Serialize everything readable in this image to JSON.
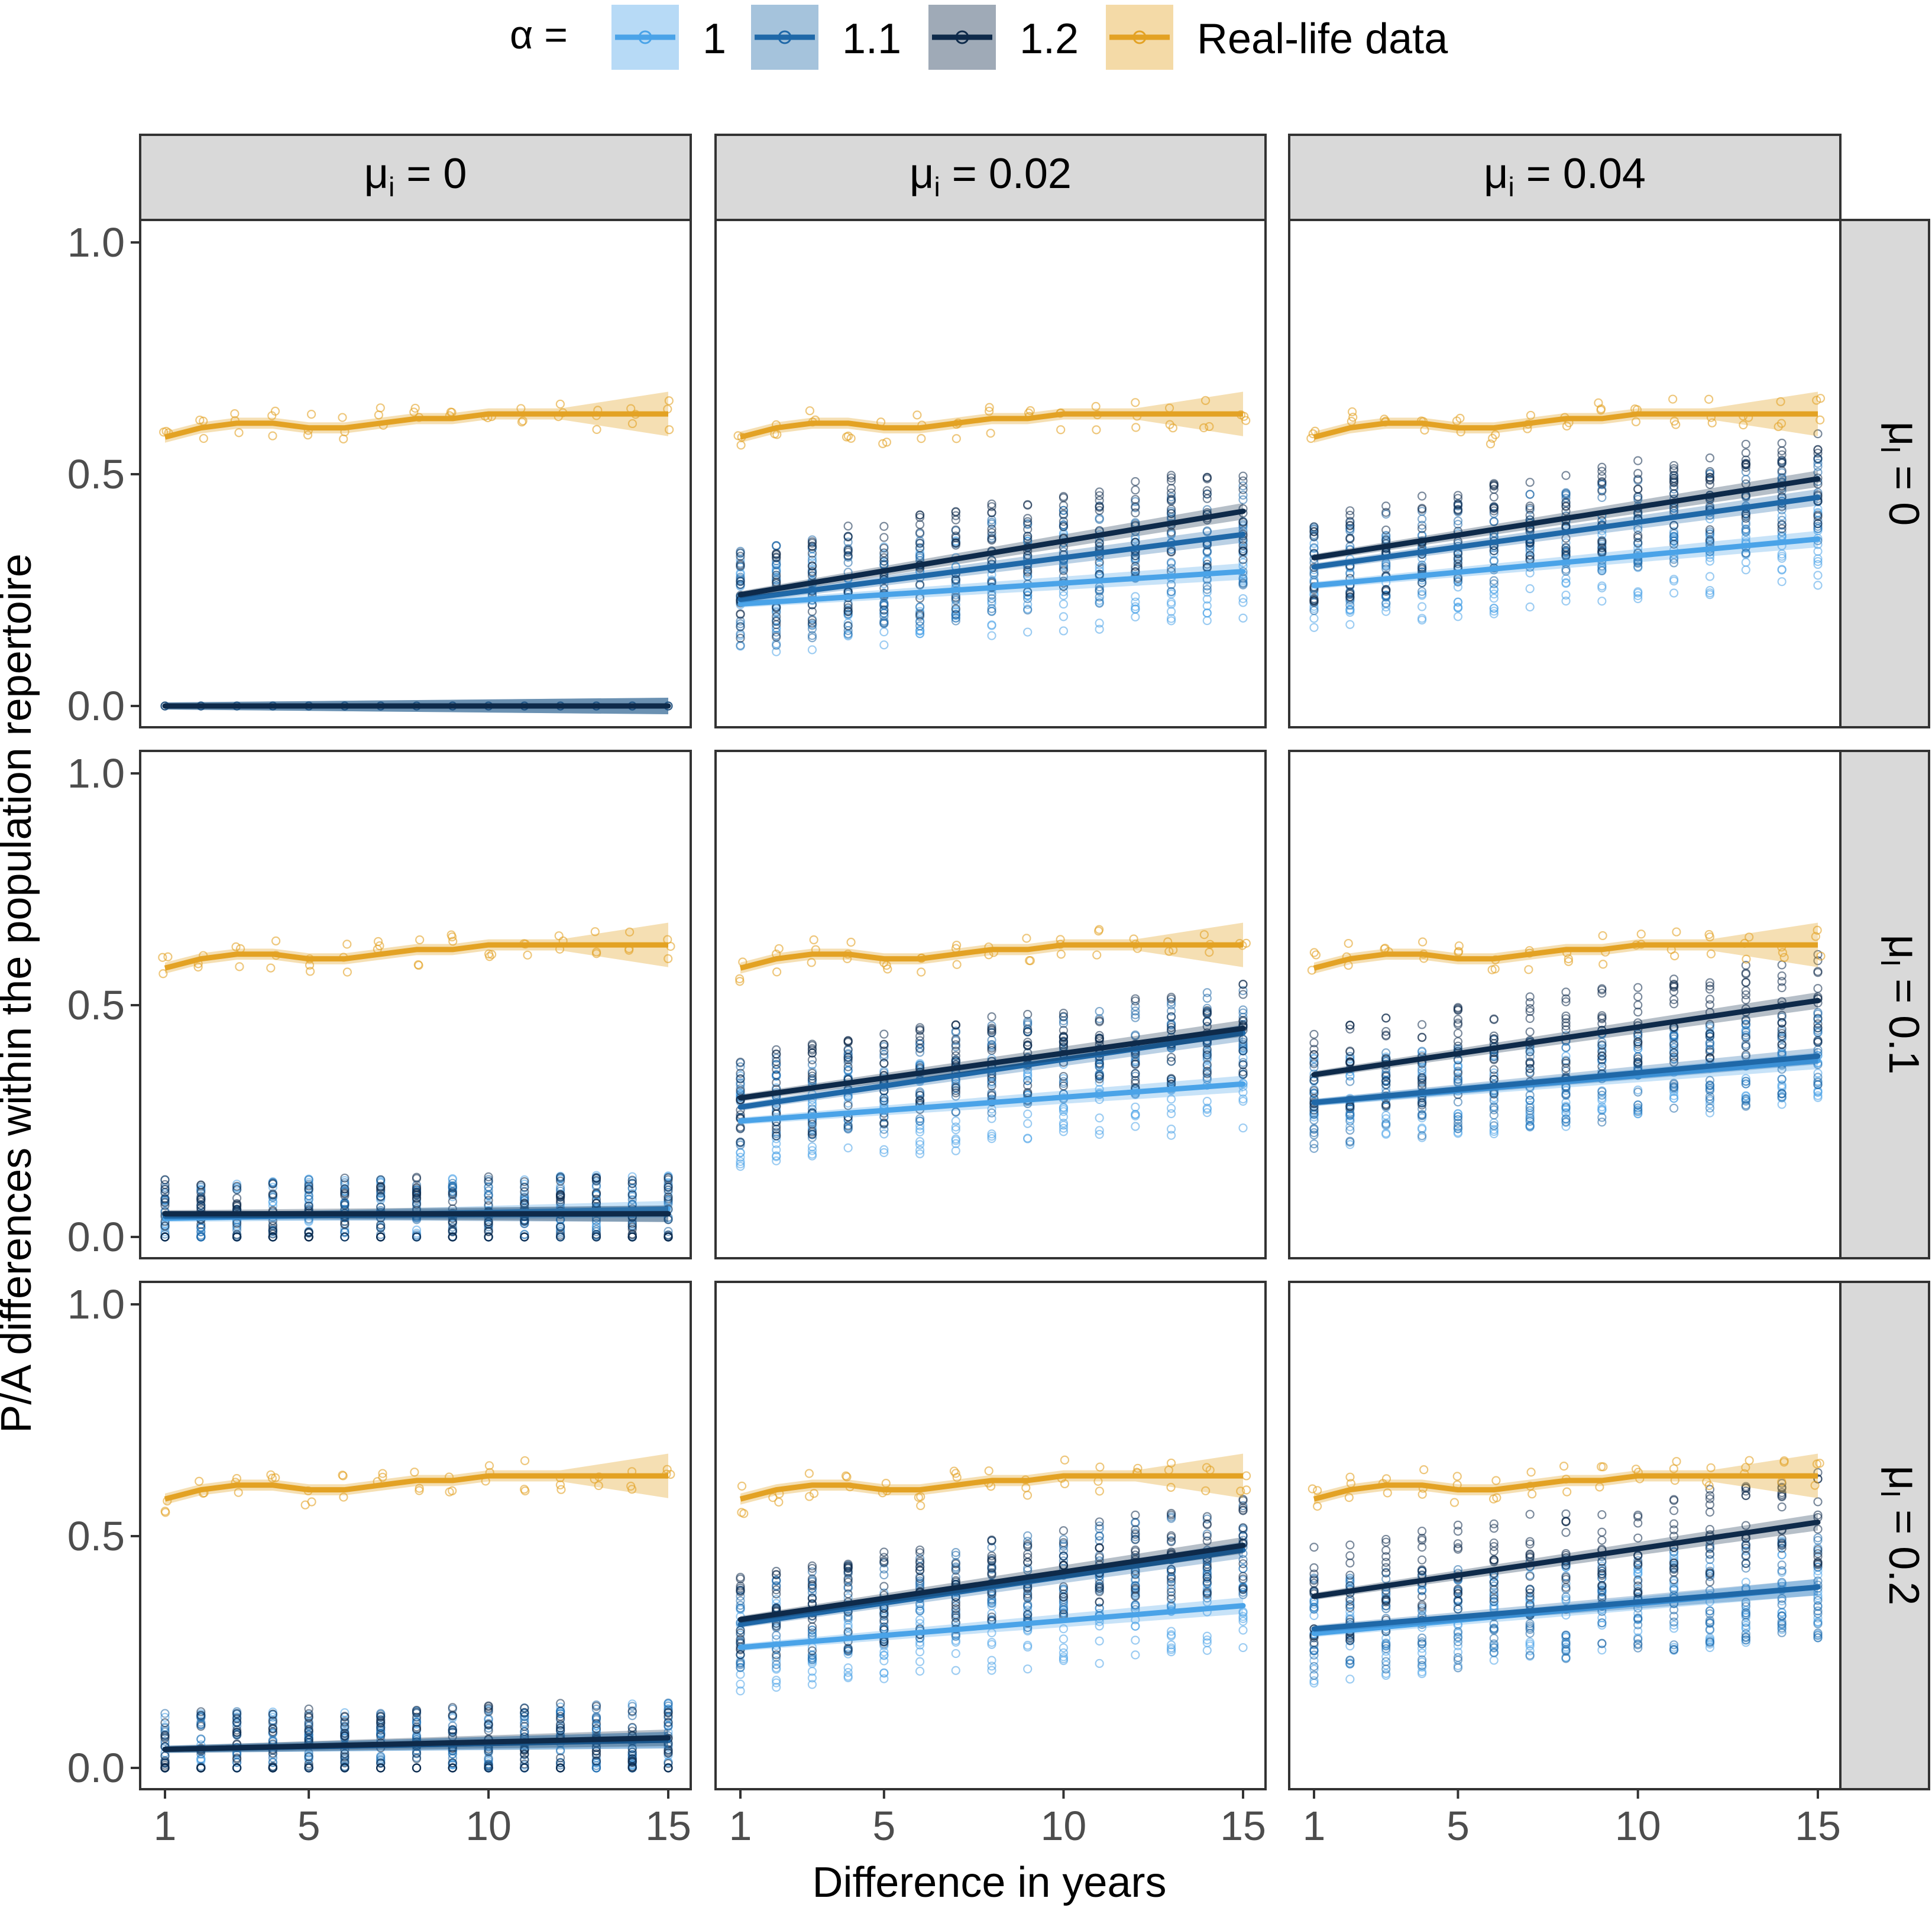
{
  "chart_data": {
    "type": "scatter",
    "xlabel": "Difference in years",
    "ylabel": "P/A differences within the population repertoire",
    "xlim": [
      1,
      15
    ],
    "ylim": [
      0,
      1
    ],
    "x_ticks": [
      1,
      5,
      10,
      15
    ],
    "y_ticks": [
      0.0,
      0.5,
      1.0
    ],
    "y_tick_labels": [
      "0.0",
      "0.5",
      "1.0"
    ],
    "legend": {
      "position": "top",
      "title": "α =",
      "entries": [
        {
          "label": "1",
          "color": "#4aa3e8"
        },
        {
          "label": "1.1",
          "color": "#1f68a8"
        },
        {
          "label": "1.2",
          "color": "#0e2a4a"
        },
        {
          "label": "Real-life data",
          "color": "#e3a224"
        }
      ]
    },
    "column_facets": [
      {
        "prefix": "μ",
        "sub": "i",
        "value": " = 0"
      },
      {
        "prefix": "μ",
        "sub": "i",
        "value": " = 0.02"
      },
      {
        "prefix": "μ",
        "sub": "i",
        "value": " = 0.04"
      }
    ],
    "row_facets": [
      {
        "prefix": "μ",
        "sub": "I",
        "value": " = 0"
      },
      {
        "prefix": "μ",
        "sub": "I",
        "value": " = 0.1"
      },
      {
        "prefix": "μ",
        "sub": "I",
        "value": " = 0.2"
      }
    ],
    "real_life_data": {
      "name": "Real-life data",
      "x": [
        1,
        2,
        3,
        4,
        5,
        6,
        7,
        8,
        9,
        10,
        11,
        12,
        13,
        14,
        15
      ],
      "y": [
        0.58,
        0.6,
        0.61,
        0.61,
        0.6,
        0.6,
        0.61,
        0.62,
        0.62,
        0.63,
        0.63,
        0.63,
        0.63,
        0.63,
        0.63
      ]
    },
    "simulation_trends": [
      [
        {
          "alpha": "1",
          "start": 0.0,
          "end": 0.0
        },
        {
          "alpha": "1.1",
          "start": 0.0,
          "end": 0.0
        },
        {
          "alpha": "1.2",
          "start": 0.0,
          "end": 0.0
        }
      ],
      [
        {
          "alpha": "1",
          "start": 0.22,
          "end": 0.29
        },
        {
          "alpha": "1.1",
          "start": 0.23,
          "end": 0.37
        },
        {
          "alpha": "1.2",
          "start": 0.24,
          "end": 0.42
        }
      ],
      [
        {
          "alpha": "1",
          "start": 0.26,
          "end": 0.36
        },
        {
          "alpha": "1.1",
          "start": 0.3,
          "end": 0.45
        },
        {
          "alpha": "1.2",
          "start": 0.32,
          "end": 0.49
        }
      ],
      [
        {
          "alpha": "1",
          "start": 0.04,
          "end": 0.06
        },
        {
          "alpha": "1.1",
          "start": 0.045,
          "end": 0.05
        },
        {
          "alpha": "1.2",
          "start": 0.05,
          "end": 0.05
        }
      ],
      [
        {
          "alpha": "1",
          "start": 0.25,
          "end": 0.33
        },
        {
          "alpha": "1.1",
          "start": 0.28,
          "end": 0.44
        },
        {
          "alpha": "1.2",
          "start": 0.3,
          "end": 0.45
        }
      ],
      [
        {
          "alpha": "1",
          "start": 0.29,
          "end": 0.38
        },
        {
          "alpha": "1.1",
          "start": 0.29,
          "end": 0.39
        },
        {
          "alpha": "1.2",
          "start": 0.35,
          "end": 0.51
        }
      ],
      [
        {
          "alpha": "1",
          "start": 0.04,
          "end": 0.06
        },
        {
          "alpha": "1.1",
          "start": 0.04,
          "end": 0.06
        },
        {
          "alpha": "1.2",
          "start": 0.04,
          "end": 0.065
        }
      ],
      [
        {
          "alpha": "1",
          "start": 0.26,
          "end": 0.35
        },
        {
          "alpha": "1.1",
          "start": 0.31,
          "end": 0.47
        },
        {
          "alpha": "1.2",
          "start": 0.32,
          "end": 0.48
        }
      ],
      [
        {
          "alpha": "1",
          "start": 0.29,
          "end": 0.39
        },
        {
          "alpha": "1.1",
          "start": 0.3,
          "end": 0.39
        },
        {
          "alpha": "1.2",
          "start": 0.37,
          "end": 0.53
        }
      ]
    ],
    "simulation_spread": [
      0.0,
      0.11,
      0.1,
      0.08,
      0.1,
      0.1,
      0.08,
      0.1,
      0.11
    ]
  }
}
